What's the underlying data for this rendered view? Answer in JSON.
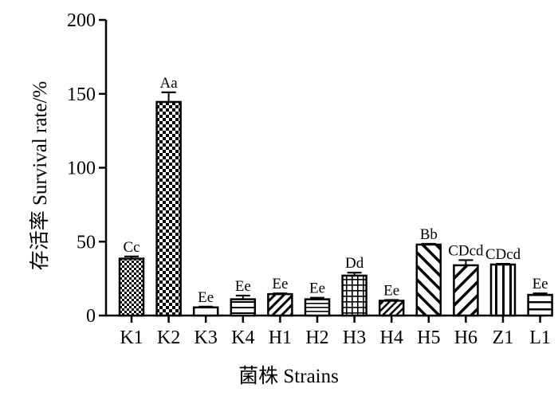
{
  "chart_data": {
    "type": "bar",
    "title": "",
    "xlabel": "菌株 Strains",
    "ylabel": "存活率 Survival rate/%",
    "ylim": [
      0,
      200
    ],
    "yticks": [
      0,
      50,
      100,
      150,
      200
    ],
    "ytick_labels": [
      "0",
      "50",
      "100",
      "150",
      "200"
    ],
    "grid": false,
    "legend": "none",
    "categories": [
      "K1",
      "K2",
      "K3",
      "K4",
      "H1",
      "H2",
      "H3",
      "H4",
      "H5",
      "H6",
      "Z1",
      "L1"
    ],
    "values": [
      38.5,
      144.5,
      5.5,
      11,
      14.5,
      11,
      27,
      10,
      48,
      34,
      34.5,
      14
    ],
    "errors": [
      1.5,
      6.5,
      0.5,
      2.5,
      0.5,
      1,
      2,
      0.5,
      0.5,
      3.5,
      0.5,
      1
    ],
    "labels": [
      "Cc",
      "Aa",
      "Ee",
      "Ee",
      "Ee",
      "Ee",
      "Dd",
      "Ee",
      "Bb",
      "CDcd",
      "CDcd",
      "Ee"
    ],
    "patterns": [
      "checker-small",
      "checker",
      "solid-white",
      "horizontal",
      "diag-up",
      "horizontal-double",
      "grid",
      "diag-up-dense",
      "diag-down-wide",
      "diag-up-wide",
      "vertical",
      "horizontal-wide"
    ],
    "colors": {
      "ink": "#000000",
      "background": "#ffffff"
    }
  }
}
